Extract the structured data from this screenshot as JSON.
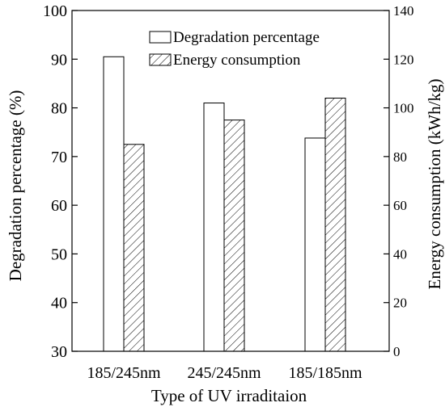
{
  "chart_data": {
    "type": "bar",
    "categories": [
      "185/245nm",
      "245/245nm",
      "185/185nm"
    ],
    "series": [
      {
        "name": "Degradation percentage",
        "axis": "left",
        "fill": "open",
        "values": [
          90.5,
          81.0,
          73.8
        ]
      },
      {
        "name": "Energy consumption",
        "axis": "right",
        "fill": "hatched",
        "values": [
          85,
          95,
          104
        ]
      }
    ],
    "xlabel": "Type of UV irraditaion",
    "ylabel_left": "Degradation percentage (%)",
    "ylabel_right": "Energy consumption (kWh/kg)",
    "ylim_left": [
      30,
      100
    ],
    "yticks_left": [
      30,
      40,
      50,
      60,
      70,
      80,
      90,
      100
    ],
    "ylim_right": [
      0,
      140
    ],
    "yticks_right": [
      0,
      20,
      40,
      60,
      80,
      100,
      120,
      140
    ],
    "grid": false,
    "legend_position": "top-right",
    "colors": {
      "line": "#000000",
      "background": "#ffffff"
    }
  }
}
